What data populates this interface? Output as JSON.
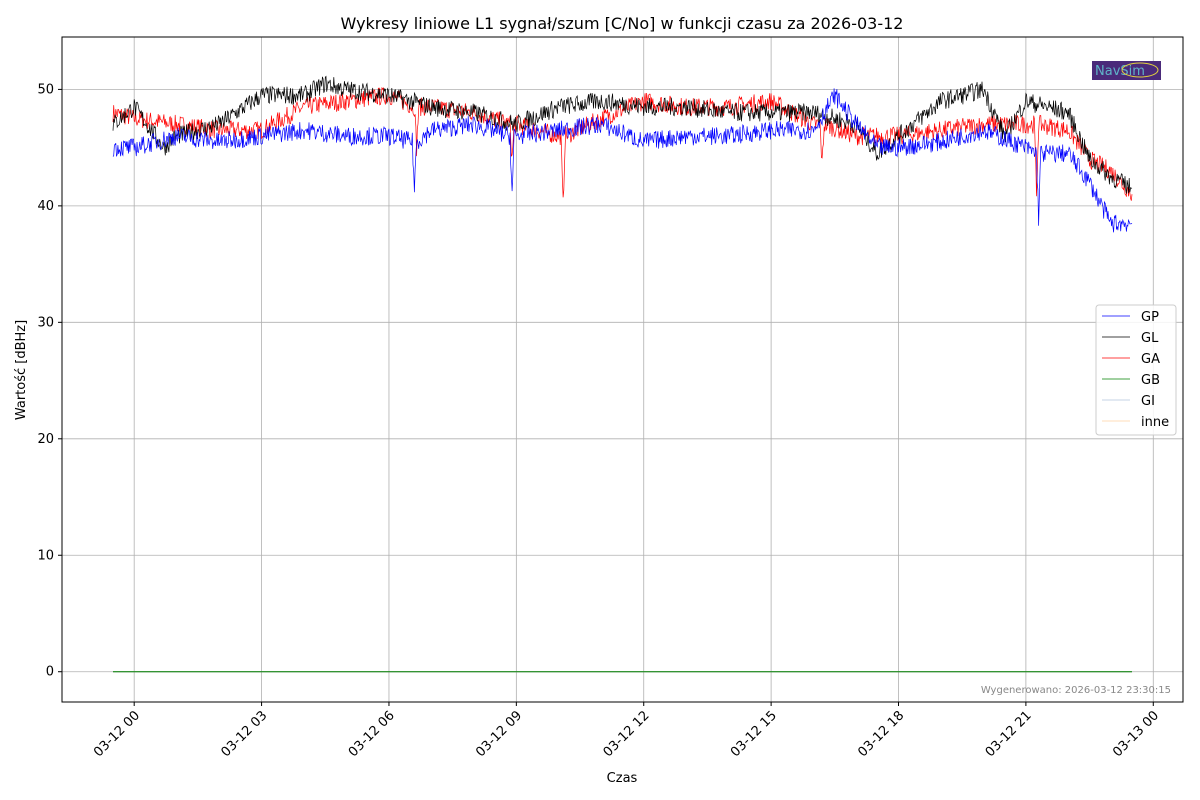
{
  "chart_data": {
    "type": "line",
    "title": "Wykresy liniowe L1 sygnał/szum [C/No] w funkcji czasu za 2026-03-12",
    "xlabel": "Czas",
    "ylabel": "Wartość [dBHz]",
    "x_unit": "hours since 2026-03-12 00:00",
    "xlim": [
      -1.7,
      24.7
    ],
    "ylim": [
      -2.6,
      54.5
    ],
    "x_ticks": [
      0,
      3,
      6,
      9,
      12,
      15,
      18,
      21,
      24
    ],
    "x_tick_labels": [
      "03-12 00",
      "03-12 03",
      "03-12 06",
      "03-12 09",
      "03-12 12",
      "03-12 15",
      "03-12 18",
      "03-12 21",
      "03-13 00"
    ],
    "y_ticks": [
      0,
      10,
      20,
      30,
      40,
      50
    ],
    "y_tick_labels": [
      "0",
      "10",
      "20",
      "30",
      "40",
      "50"
    ],
    "grid": true,
    "legend_position": "center-right",
    "series": [
      {
        "name": "GP",
        "color": "#0000ff",
        "x": [
          -0.5,
          0,
          0.5,
          1,
          2,
          3,
          4,
          5,
          6,
          6.55,
          6.6,
          6.65,
          7,
          8,
          8.85,
          8.9,
          8.95,
          9,
          10,
          11,
          12,
          13,
          14,
          15,
          16,
          16.5,
          17,
          17.5,
          18,
          19,
          20,
          21,
          21.25,
          21.3,
          21.35,
          22,
          22.5,
          23,
          23.5
        ],
        "y": [
          45,
          45,
          45.5,
          46,
          45.5,
          46,
          46.5,
          46,
          46,
          45.5,
          41.5,
          45.5,
          46.5,
          47,
          46,
          41,
          46,
          46,
          46.5,
          47,
          45.5,
          46,
          46,
          46.5,
          46.5,
          49.5,
          47,
          45,
          45,
          45.5,
          46.5,
          45,
          44.5,
          39,
          44.5,
          44.5,
          42,
          38.5,
          38.5
        ]
      },
      {
        "name": "GL",
        "color": "#000000",
        "x": [
          -0.5,
          0,
          0.7,
          1,
          2,
          3,
          4,
          4.5,
          5,
          6,
          7,
          8,
          9,
          10,
          11,
          12,
          13,
          14,
          15,
          16,
          17,
          17.5,
          18,
          19,
          20,
          20.5,
          21,
          22,
          22.5,
          23,
          23.5
        ],
        "y": [
          47,
          48.5,
          45,
          46,
          47,
          49.5,
          49.5,
          50.5,
          50,
          49.5,
          48.5,
          48,
          47,
          48.5,
          49,
          48.5,
          48.5,
          48,
          48,
          48,
          47,
          44.5,
          46,
          49,
          50,
          46,
          49,
          48,
          44,
          42.5,
          41.5
        ]
      },
      {
        "name": "GA",
        "color": "#ff0000",
        "x": [
          -0.5,
          0,
          1,
          2,
          3,
          4,
          5,
          6,
          6.6,
          6.65,
          6.7,
          7,
          8,
          8.85,
          8.9,
          8.95,
          9,
          10,
          10.05,
          10.1,
          10.15,
          11,
          12,
          13,
          14,
          15,
          16,
          16.15,
          16.2,
          16.25,
          17,
          18,
          19,
          20,
          21,
          21.2,
          21.25,
          21.3,
          22,
          22.5,
          23,
          23.5
        ],
        "y": [
          48,
          47.5,
          47,
          46.5,
          46.5,
          48.5,
          49,
          49.5,
          48.5,
          45,
          48.5,
          48.5,
          48,
          47,
          44,
          47,
          47,
          46,
          46,
          40,
          46,
          47.5,
          49,
          48.5,
          48.5,
          49,
          47,
          47,
          43.5,
          47,
          46,
          46,
          46.5,
          47,
          47,
          47,
          41,
          47,
          46.5,
          44,
          43,
          41
        ]
      },
      {
        "name": "GB",
        "color": "#008000",
        "x": [
          -0.5,
          23.5
        ],
        "y": [
          0,
          0
        ]
      },
      {
        "name": "GI",
        "color": "#b0c4de",
        "x": [
          -0.5,
          23.5
        ],
        "y": [
          0,
          0
        ]
      },
      {
        "name": "inne",
        "color": "#ffd0a0",
        "x": [
          -0.5,
          23.5
        ],
        "y": [
          0,
          0
        ]
      }
    ],
    "footnote": "Wygenerowano: 2026-03-12 23:30:15",
    "logo_text": "NavSim"
  }
}
